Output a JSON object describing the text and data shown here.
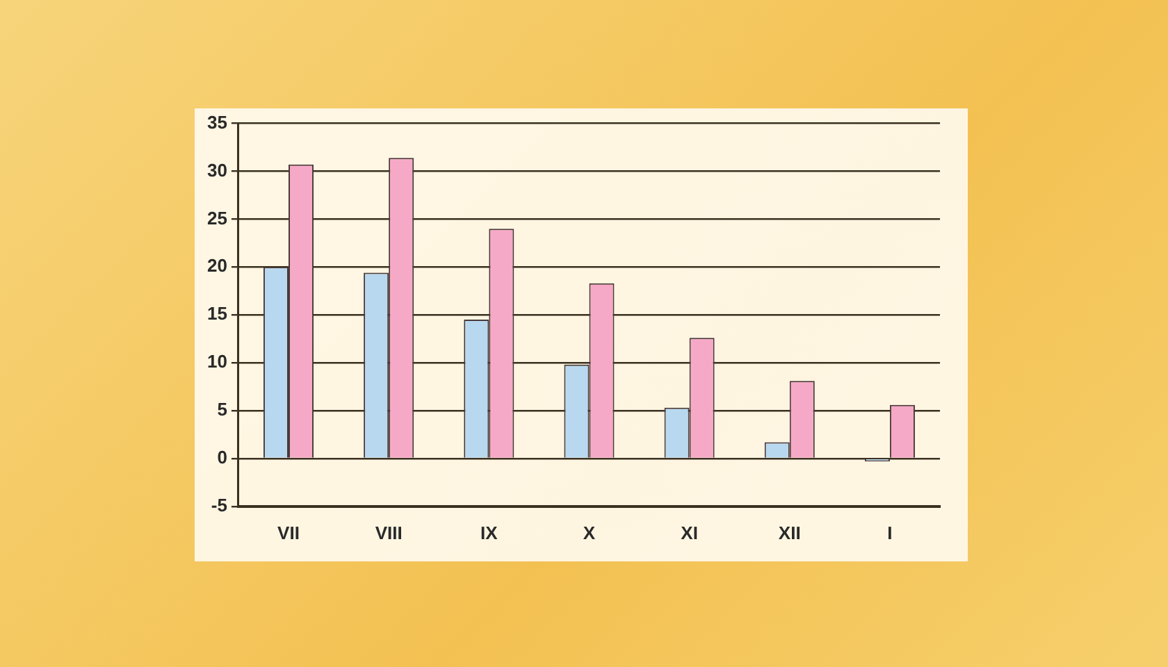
{
  "chart_data": {
    "type": "bar",
    "categories": [
      "VII",
      "VIII",
      "IX",
      "X",
      "XI",
      "XII",
      "I"
    ],
    "series": [
      {
        "color": "#b8d8ef",
        "values": [
          20,
          19.4,
          14.5,
          9.8,
          5.3,
          1.7,
          -0.3
        ]
      },
      {
        "color": "#f6a9c6",
        "values": [
          30.7,
          31.4,
          24,
          18.3,
          12.6,
          8.1,
          5.6
        ]
      }
    ],
    "ylim": [
      -5,
      35
    ],
    "yticks": [
      -5,
      0,
      5,
      10,
      15,
      20,
      25,
      30,
      35
    ],
    "grid": "y",
    "legend": false
  }
}
